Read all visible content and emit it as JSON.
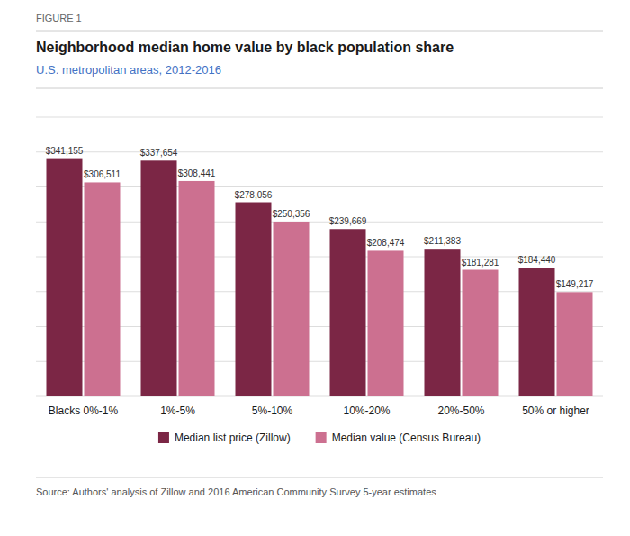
{
  "chart_data": {
    "type": "bar",
    "title": "Neighborhood median home value by black population share",
    "subtitle": "U.S. metropolitan areas, 2012-2016",
    "annotations": [
      "FIGURE 1",
      "Source: Authors' analysis of Zillow and 2016 American Community Survey 5-year estimates"
    ],
    "categories": [
      "Blacks 0%-1%",
      "1%-5%",
      "5%-10%",
      "10%-20%",
      "20%-50%",
      "50% or higher"
    ],
    "series": [
      {
        "name": "Median list price (Zillow)",
        "color": "#7B2645",
        "values": [
          341155,
          337654,
          278056,
          239669,
          211383,
          184440
        ],
        "value_labels": [
          "$341,155",
          "$337,654",
          "$278,056",
          "$239,669",
          "$211,383",
          "$184,440"
        ]
      },
      {
        "name": "Median value (Census Bureau)",
        "color": "#CC7090",
        "values": [
          306511,
          308441,
          250356,
          208474,
          181281,
          149217
        ],
        "value_labels": [
          "$306,511",
          "$308,441",
          "$250,356",
          "$208,474",
          "$181,281",
          "$149,217"
        ]
      }
    ],
    "ylim": [
      0,
      400000
    ],
    "yticks": [
      0,
      50000,
      100000,
      150000,
      200000,
      250000,
      300000,
      350000,
      400000
    ],
    "grid": true,
    "legend": "bottom",
    "data_labels": true,
    "tick_labels": "x"
  }
}
